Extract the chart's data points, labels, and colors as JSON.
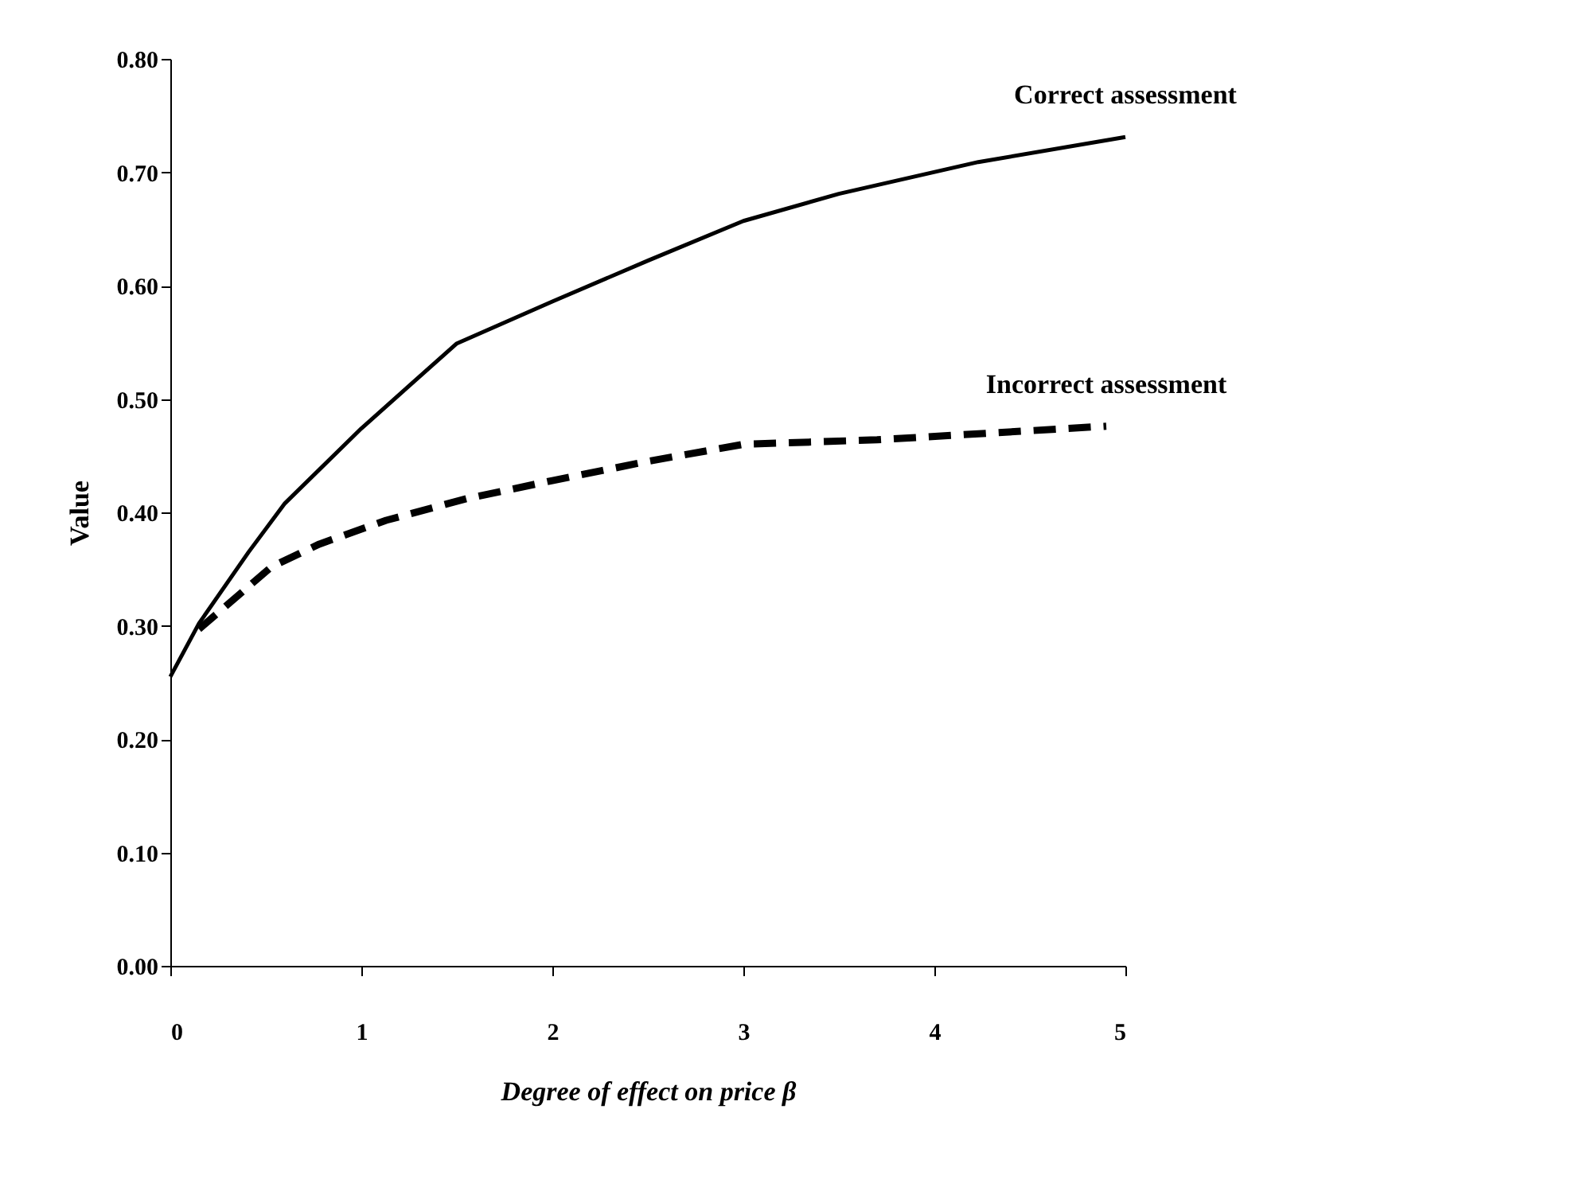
{
  "chart_data": {
    "type": "line",
    "xlabel": "Degree of effect on price β",
    "ylabel": "Value",
    "xlim": [
      0,
      5
    ],
    "xticks": [
      0,
      1,
      2,
      3,
      4,
      5
    ],
    "ylim": [
      0,
      0.8
    ],
    "yticks": [
      {
        "value": 0,
        "label": "0.00"
      },
      {
        "value": 0.1,
        "label": "0.10"
      },
      {
        "value": 0.2,
        "label": "0.20"
      },
      {
        "value": 0.3,
        "label": "0.30"
      },
      {
        "value": 0.4,
        "label": "0.40"
      },
      {
        "value": 0.5,
        "label": "0.50"
      },
      {
        "value": 0.6,
        "label": "0.60"
      },
      {
        "value": 0.7,
        "label": "0.70"
      },
      {
        "value": 0.8,
        "label": "0.80"
      }
    ],
    "grid": false,
    "marker": "none",
    "series": [
      {
        "name": "Correct assessment",
        "color": "#000000",
        "line_style": "solid",
        "x": [
          0,
          0.15,
          0.41,
          0.6,
          1,
          1.5,
          2,
          2.5,
          3,
          3.5,
          4.23,
          5
        ],
        "values": [
          0.255,
          0.302,
          0.365,
          0.408,
          0.474,
          0.549,
          0.586,
          0.622,
          0.657,
          0.681,
          0.709,
          0.731
        ]
      },
      {
        "name": "Incorrect assessment",
        "color": "#000000",
        "line_style": "dashed",
        "x": [
          0.15,
          0.53,
          0.78,
          1.13,
          1.55,
          2,
          2.5,
          3,
          3.7,
          4.9
        ],
        "values": [
          0.297,
          0.352,
          0.372,
          0.393,
          0.412,
          0.428,
          0.445,
          0.46,
          0.464,
          0.476
        ]
      }
    ]
  }
}
